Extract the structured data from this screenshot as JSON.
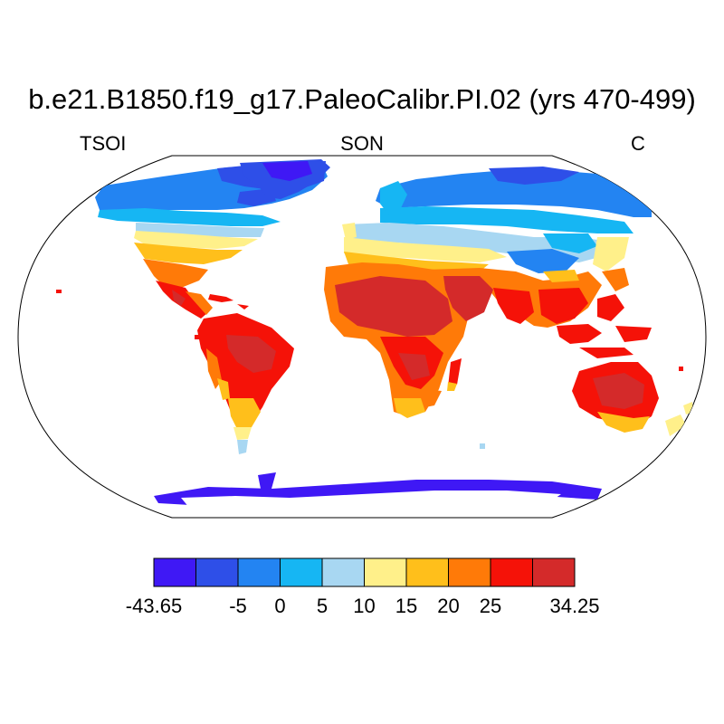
{
  "plot": {
    "title": "b.e21.B1850.f19_g17.PaleoCalibr.PI.02 (yrs 470-499)",
    "left_label": "TSOI",
    "center_label": "SON",
    "right_label": "C"
  },
  "colorbar": {
    "colors": [
      "#3f18f5",
      "#2e4fe8",
      "#2384f2",
      "#16b6f3",
      "#a8d7f2",
      "#fff08a",
      "#ffbf1b",
      "#ff7a08",
      "#f51208",
      "#d42a2a"
    ],
    "labels": [
      "-43.65",
      "",
      "-5",
      "0",
      "5",
      "10",
      "15",
      "20",
      "25",
      "",
      "34.25"
    ]
  }
}
